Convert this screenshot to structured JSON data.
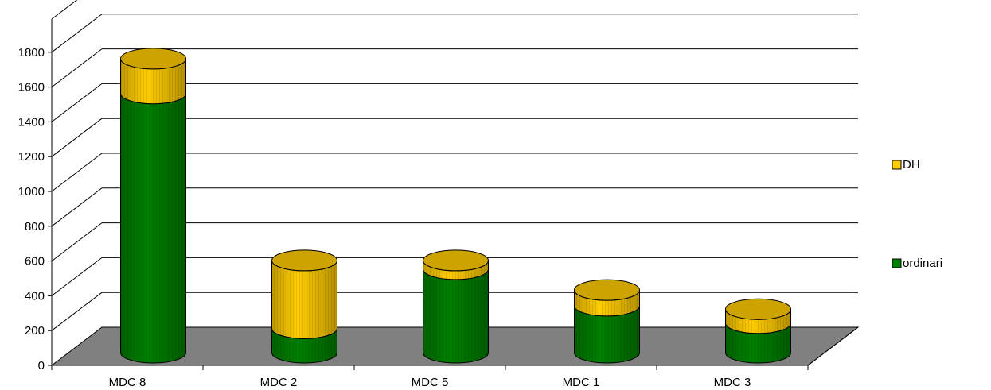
{
  "chart_data": {
    "type": "bar",
    "stacked": true,
    "style": "3d-cylinder",
    "categories": [
      "MDC 8",
      "MDC 2",
      "MDC 5",
      "MDC 1",
      "MDC 3"
    ],
    "series": [
      {
        "name": "ordinari",
        "color": "#008000",
        "values": [
          1490,
          140,
          480,
          270,
          170
        ]
      },
      {
        "name": "DH",
        "color": "#ffcc00",
        "values": [
          200,
          390,
          50,
          90,
          80
        ]
      }
    ],
    "yticks": [
      0,
      200,
      400,
      600,
      800,
      1000,
      1200,
      1400,
      1600,
      1800
    ],
    "ylim": [
      0,
      1800
    ],
    "grid": true,
    "legend": {
      "position": "right",
      "order": [
        "DH",
        "ordinari"
      ]
    },
    "floor_color": "#808080"
  }
}
